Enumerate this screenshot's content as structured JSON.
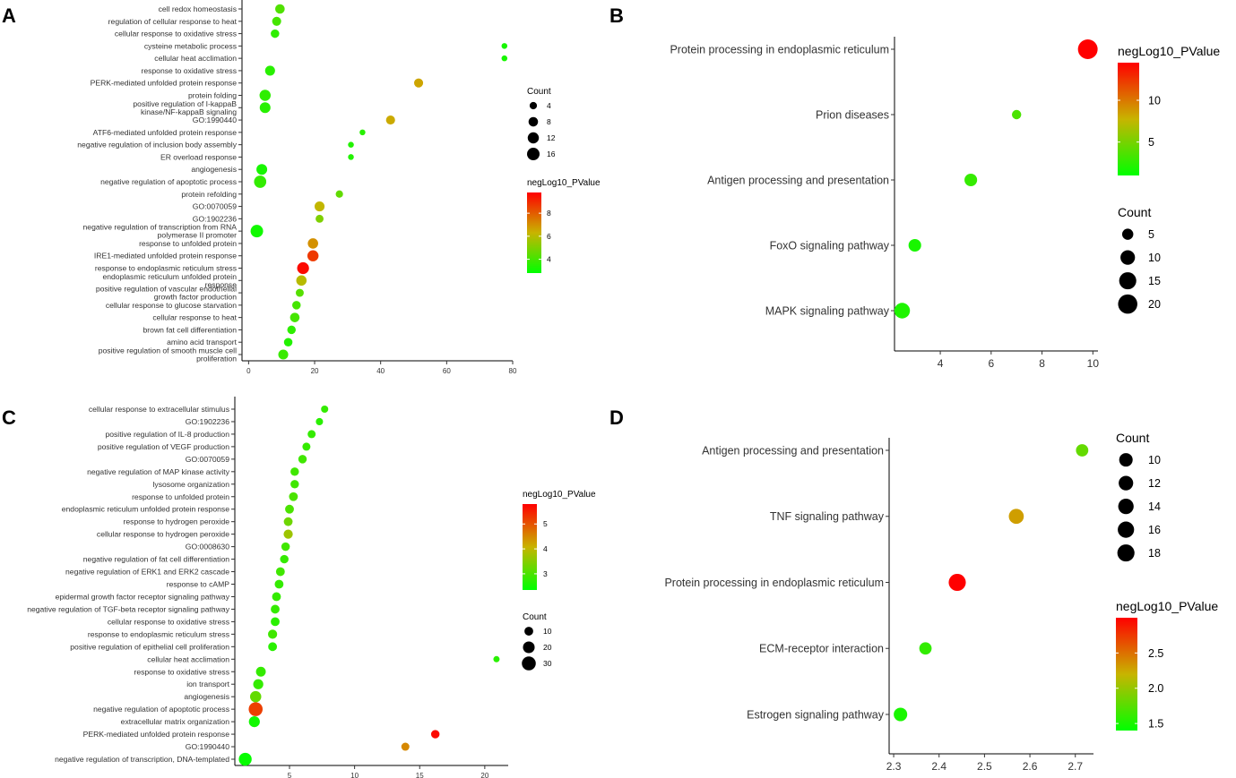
{
  "chart_data": [
    {
      "panel": "A",
      "type": "scatter",
      "x_ticks": [
        0,
        20,
        40,
        60,
        80
      ],
      "xlim": [
        -2,
        80
      ],
      "count_title": "Count",
      "count_ticks": [
        4,
        8,
        12,
        16
      ],
      "color_title": "negLog10_PValue",
      "color_ticks": [
        4,
        6,
        8
      ],
      "color_range": [
        2.8,
        9.8
      ],
      "terms": [
        {
          "label": "cell redox homeostasis",
          "x": 9.5,
          "count": 8,
          "p": 4.2
        },
        {
          "label": "regulation of cellular response to heat",
          "x": 8.5,
          "count": 7,
          "p": 4.0
        },
        {
          "label": "cellular response to oxidative stress",
          "x": 8,
          "count": 6,
          "p": 3.6
        },
        {
          "label": "cysteine metabolic process",
          "x": 77.5,
          "count": 2,
          "p": 3.2
        },
        {
          "label": "cellular heat acclimation",
          "x": 77.5,
          "count": 2,
          "p": 3.2
        },
        {
          "label": "response to oxidative stress",
          "x": 6.5,
          "count": 9,
          "p": 3.5
        },
        {
          "label": "PERK-mediated unfolded protein response",
          "x": 51.5,
          "count": 7,
          "p": 6.6
        },
        {
          "label": "protein folding",
          "x": 5,
          "count": 12,
          "p": 3.6
        },
        {
          "label": "positive regulation of I-kappaB kinase/NF-kappaB signaling",
          "x": 5,
          "count": 11,
          "p": 3.5
        },
        {
          "label": "GO:1990440",
          "x": 43,
          "count": 7,
          "p": 6.5
        },
        {
          "label": "ATF6-mediated unfolded protein response",
          "x": 34.5,
          "count": 2,
          "p": 3.5
        },
        {
          "label": "negative regulation of inclusion body assembly",
          "x": 31,
          "count": 2,
          "p": 3.4
        },
        {
          "label": "ER overload response",
          "x": 31,
          "count": 2,
          "p": 3.4
        },
        {
          "label": "angiogenesis",
          "x": 4,
          "count": 11,
          "p": 3.2
        },
        {
          "label": "negative regulation of apoptotic process",
          "x": 3.5,
          "count": 15,
          "p": 3.7
        },
        {
          "label": "protein refolding",
          "x": 27.5,
          "count": 4,
          "p": 4.5
        },
        {
          "label": "GO:0070059",
          "x": 21.5,
          "count": 9,
          "p": 6.2
        },
        {
          "label": "GO:1902236",
          "x": 21.5,
          "count": 5,
          "p": 5.0
        },
        {
          "label": "negative regulation of transcription from RNA polymerase II promoter",
          "x": 2.5,
          "count": 16,
          "p": 3.1
        },
        {
          "label": "response to unfolded protein",
          "x": 19.5,
          "count": 10,
          "p": 7.0
        },
        {
          "label": "IRE1-mediated unfolded protein response",
          "x": 19.5,
          "count": 12,
          "p": 8.7
        },
        {
          "label": "response to endoplasmic reticulum stress",
          "x": 16.5,
          "count": 14,
          "p": 9.6
        },
        {
          "label": "endoplasmic reticulum unfolded protein response",
          "x": 16,
          "count": 10,
          "p": 6.0
        },
        {
          "label": "positive regulation of vascular endothelial growth factor production",
          "x": 15.5,
          "count": 5,
          "p": 4.3
        },
        {
          "label": "cellular response to glucose starvation",
          "x": 14.5,
          "count": 6,
          "p": 4.0
        },
        {
          "label": "cellular response to heat",
          "x": 14,
          "count": 8,
          "p": 4.0
        },
        {
          "label": "brown fat cell differentiation",
          "x": 13,
          "count": 6,
          "p": 3.6
        },
        {
          "label": "amino acid transport",
          "x": 12,
          "count": 6,
          "p": 3.4
        },
        {
          "label": "positive regulation of smooth muscle cell proliferation",
          "x": 10.5,
          "count": 9,
          "p": 3.8
        }
      ]
    },
    {
      "panel": "B",
      "type": "scatter",
      "x_ticks": [
        4,
        6,
        8,
        10
      ],
      "xlim": [
        2.2,
        10.2
      ],
      "count_title": "Count",
      "count_ticks": [
        5,
        10,
        15,
        20
      ],
      "color_title": "negLog10_PValue",
      "color_ticks": [
        5,
        10
      ],
      "color_range": [
        1.0,
        14.5
      ],
      "terms": [
        {
          "label": "Protein processing in endoplasmic reticulum",
          "x": 9.8,
          "count": 21,
          "p": 14.5
        },
        {
          "label": "Prion diseases",
          "x": 7.0,
          "count": 3,
          "p": 3.5
        },
        {
          "label": "Antigen processing and presentation",
          "x": 5.2,
          "count": 7,
          "p": 2.8
        },
        {
          "label": "FoxO signaling pathway",
          "x": 3.0,
          "count": 7,
          "p": 1.8
        },
        {
          "label": "MAPK signaling pathway",
          "x": 2.5,
          "count": 12,
          "p": 2.0
        }
      ]
    },
    {
      "panel": "C",
      "type": "scatter",
      "x_ticks": [
        5,
        10,
        15,
        20
      ],
      "xlim": [
        0.8,
        21.8
      ],
      "count_title": "Count",
      "count_ticks": [
        10,
        20,
        30
      ],
      "color_title": "negLog10_PValue",
      "color_ticks": [
        3,
        4,
        5
      ],
      "color_range": [
        2.35,
        5.8
      ],
      "terms": [
        {
          "label": "cellular response to extracellular stimulus",
          "x": 7.7,
          "count": 6,
          "p": 2.8
        },
        {
          "label": "GO:1902236",
          "x": 7.3,
          "count": 6,
          "p": 2.7
        },
        {
          "label": "positive regulation of IL-8 production",
          "x": 6.7,
          "count": 8,
          "p": 2.8
        },
        {
          "label": "positive regulation of VEGF production",
          "x": 6.3,
          "count": 8,
          "p": 2.8
        },
        {
          "label": "GO:0070059",
          "x": 6.0,
          "count": 9,
          "p": 2.9
        },
        {
          "label": "negative regulation of MAP kinase activity",
          "x": 5.4,
          "count": 9,
          "p": 2.9
        },
        {
          "label": "lysosome organization",
          "x": 5.4,
          "count": 9,
          "p": 2.9
        },
        {
          "label": "response to unfolded protein",
          "x": 5.3,
          "count": 10,
          "p": 3.0
        },
        {
          "label": "endoplasmic reticulum unfolded protein response",
          "x": 5.0,
          "count": 10,
          "p": 3.0
        },
        {
          "label": "response to hydrogen peroxide",
          "x": 4.9,
          "count": 10,
          "p": 3.3
        },
        {
          "label": "cellular response to hydrogen peroxide",
          "x": 4.9,
          "count": 11,
          "p": 3.7
        },
        {
          "label": "GO:0008630",
          "x": 4.7,
          "count": 9,
          "p": 2.9
        },
        {
          "label": "negative regulation of fat cell differentiation",
          "x": 4.6,
          "count": 9,
          "p": 2.8
        },
        {
          "label": "negative regulation of ERK1 and ERK2 cascade",
          "x": 4.3,
          "count": 10,
          "p": 2.9
        },
        {
          "label": "response to cAMP",
          "x": 4.2,
          "count": 10,
          "p": 2.8
        },
        {
          "label": "epidermal growth factor receptor signaling pathway",
          "x": 4.0,
          "count": 10,
          "p": 2.8
        },
        {
          "label": "negative regulation of TGF-beta receptor signaling pathway",
          "x": 3.9,
          "count": 10,
          "p": 2.8
        },
        {
          "label": "cellular response to oxidative stress",
          "x": 3.9,
          "count": 10,
          "p": 2.7
        },
        {
          "label": "response to endoplasmic reticulum stress",
          "x": 3.7,
          "count": 11,
          "p": 2.9
        },
        {
          "label": "positive regulation of epithelial cell proliferation",
          "x": 3.7,
          "count": 10,
          "p": 2.7
        },
        {
          "label": "cellular heat acclimation",
          "x": 20.9,
          "count": 4,
          "p": 2.7
        },
        {
          "label": "response to oxidative stress",
          "x": 2.8,
          "count": 13,
          "p": 2.8
        },
        {
          "label": "ion transport",
          "x": 2.6,
          "count": 14,
          "p": 2.8
        },
        {
          "label": "angiogenesis",
          "x": 2.4,
          "count": 18,
          "p": 3.2
        },
        {
          "label": "negative regulation of apoptotic process",
          "x": 2.4,
          "count": 30,
          "p": 5.2
        },
        {
          "label": "extracellular matrix organization",
          "x": 2.3,
          "count": 17,
          "p": 2.5
        },
        {
          "label": "PERK-mediated unfolded protein response",
          "x": 16.2,
          "count": 9,
          "p": 5.7
        },
        {
          "label": "GO:1990440",
          "x": 13.9,
          "count": 8,
          "p": 4.5
        },
        {
          "label": "negative regulation of transcription, DNA-templated",
          "x": 1.6,
          "count": 25,
          "p": 2.4
        }
      ]
    },
    {
      "panel": "D",
      "type": "scatter",
      "x_ticks": [
        2.3,
        2.4,
        2.5,
        2.6,
        2.7
      ],
      "x_tick_labels": [
        "2.3",
        "2.4",
        "2.5",
        "2.6",
        "2.7"
      ],
      "xlim": [
        2.29,
        2.74
      ],
      "count_title": "Count",
      "count_ticks": [
        10,
        12,
        14,
        16,
        18
      ],
      "color_title": "negLog10_PValue",
      "color_ticks": [
        1.5,
        2.0,
        2.5
      ],
      "color_tick_labels": [
        "1.5",
        "2.0",
        "2.5"
      ],
      "color_range": [
        1.4,
        3.0
      ],
      "terms": [
        {
          "label": "Antigen processing and presentation",
          "x": 2.715,
          "count": 8,
          "p": 1.8
        },
        {
          "label": "TNF signaling pathway",
          "x": 2.57,
          "count": 13,
          "p": 2.3
        },
        {
          "label": "Protein processing in endoplasmic reticulum",
          "x": 2.44,
          "count": 18,
          "p": 3.0
        },
        {
          "label": "ECM-receptor interaction",
          "x": 2.37,
          "count": 8,
          "p": 1.6
        },
        {
          "label": "Estrogen signaling pathway",
          "x": 2.315,
          "count": 10,
          "p": 1.5
        }
      ]
    }
  ]
}
